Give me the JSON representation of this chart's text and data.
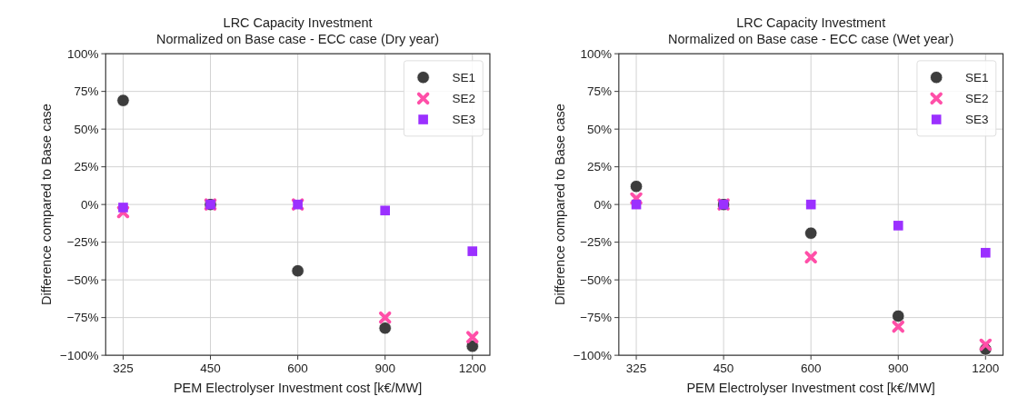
{
  "chart_data": [
    {
      "type": "scatter",
      "title": "LRC Capacity Investment\nNormalized on Base case - ECC case (Dry year)",
      "xlabel": "PEM Electrolyser Investment cost [k€/MW]",
      "ylabel": "Difference compared to Base case",
      "categories": [
        "325",
        "450",
        "600",
        "900",
        "1200"
      ],
      "ylim": [
        -100,
        100
      ],
      "yticks": [
        {
          "value": -100,
          "label": "−100%"
        },
        {
          "value": -75,
          "label": "−75%"
        },
        {
          "value": -50,
          "label": "−50%"
        },
        {
          "value": -25,
          "label": "−25%"
        },
        {
          "value": 0,
          "label": "0%"
        },
        {
          "value": 25,
          "label": "25%"
        },
        {
          "value": 50,
          "label": "50%"
        },
        {
          "value": 75,
          "label": "75%"
        },
        {
          "value": 100,
          "label": "100%"
        }
      ],
      "grid": true,
      "legend": "top right",
      "series": [
        {
          "name": "SE1",
          "color": "#333333",
          "marker": "circle",
          "values": [
            69,
            0,
            -44,
            -82,
            -94
          ]
        },
        {
          "name": "SE2",
          "color": "#ff4fa8",
          "marker": "cross",
          "values": [
            -5,
            0,
            0,
            -75,
            -88
          ]
        },
        {
          "name": "SE3",
          "color": "#9b30ff",
          "marker": "square",
          "values": [
            -2,
            0,
            0,
            -4,
            -31
          ]
        }
      ]
    },
    {
      "type": "scatter",
      "title": "LRC Capacity Investment\nNormalized on Base case - ECC case (Wet year)",
      "xlabel": "PEM Electrolyser Investment cost [k€/MW]",
      "ylabel": "Difference compared to Base case",
      "categories": [
        "325",
        "450",
        "600",
        "900",
        "1200"
      ],
      "ylim": [
        -100,
        100
      ],
      "yticks": [
        {
          "value": -100,
          "label": "−100%"
        },
        {
          "value": -75,
          "label": "−75%"
        },
        {
          "value": -50,
          "label": "−50%"
        },
        {
          "value": -25,
          "label": "−25%"
        },
        {
          "value": 0,
          "label": "0%"
        },
        {
          "value": 25,
          "label": "25%"
        },
        {
          "value": 50,
          "label": "50%"
        },
        {
          "value": 75,
          "label": "75%"
        },
        {
          "value": 100,
          "label": "100%"
        }
      ],
      "grid": true,
      "legend": "top right",
      "series": [
        {
          "name": "SE1",
          "color": "#333333",
          "marker": "circle",
          "values": [
            12,
            0,
            -19,
            -74,
            -96
          ]
        },
        {
          "name": "SE2",
          "color": "#ff4fa8",
          "marker": "cross",
          "values": [
            4,
            0,
            -35,
            -81,
            -93
          ]
        },
        {
          "name": "SE3",
          "color": "#9b30ff",
          "marker": "square",
          "values": [
            0,
            0,
            0,
            -14,
            -32
          ]
        }
      ]
    }
  ]
}
